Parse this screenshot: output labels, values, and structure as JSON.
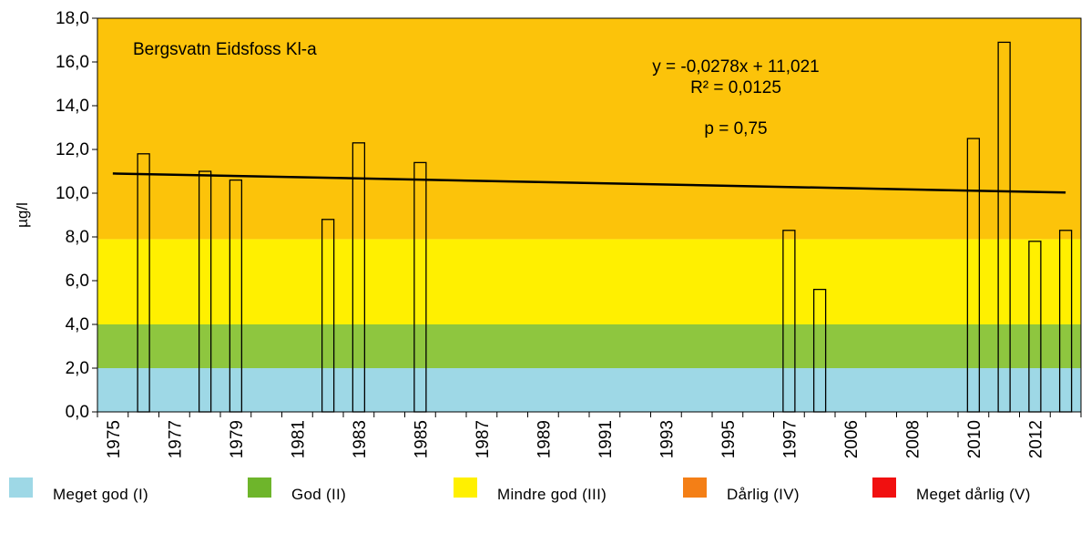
{
  "chart_data": {
    "type": "bar",
    "title": "Bergsvatn Eidsfoss  Kl-a",
    "ylabel": "µg/l",
    "xlabel": "",
    "ylim": [
      0,
      18
    ],
    "yticks": [
      "0,0",
      "2,0",
      "4,0",
      "6,0",
      "8,0",
      "10,0",
      "12,0",
      "14,0",
      "16,0",
      "18,0"
    ],
    "xtick_labels": [
      "1975",
      "1977",
      "1979",
      "1981",
      "1983",
      "1985",
      "1987",
      "1989",
      "1991",
      "1993",
      "1995",
      "1997",
      "2006",
      "2008",
      "2010",
      "2012"
    ],
    "slots": 32,
    "bars": [
      {
        "slot": 1,
        "value": 11.8
      },
      {
        "slot": 3,
        "value": 11.0
      },
      {
        "slot": 4,
        "value": 10.6
      },
      {
        "slot": 7,
        "value": 8.8
      },
      {
        "slot": 8,
        "value": 12.3
      },
      {
        "slot": 10,
        "value": 11.4
      },
      {
        "slot": 22,
        "value": 8.3
      },
      {
        "slot": 23,
        "value": 5.6
      },
      {
        "slot": 28,
        "value": 12.5
      },
      {
        "slot": 29,
        "value": 16.9
      },
      {
        "slot": 30,
        "value": 7.8
      },
      {
        "slot": 31,
        "value": 8.3
      }
    ],
    "trendline": {
      "start": 10.9,
      "end": 10.03
    },
    "annotations": {
      "equation": "y = -0,0278x + 11,021",
      "r2": "R² = 0,0125",
      "p": "p = 0,75"
    },
    "class_bands": [
      {
        "from": 0,
        "to": 2,
        "color": "#9ed8e6"
      },
      {
        "from": 2,
        "to": 4,
        "color": "#8ec63f"
      },
      {
        "from": 4,
        "to": 7.9,
        "color": "#fff000"
      },
      {
        "from": 7.9,
        "to": 18,
        "color": "#fcc30a"
      }
    ],
    "grid": false
  },
  "legend": [
    {
      "label": "Meget god (I)",
      "color": "#9ed8e6"
    },
    {
      "label": "God (II)",
      "color": "#6eb52b"
    },
    {
      "label": "Mindre god (III)",
      "color": "#fff000"
    },
    {
      "label": "Dårlig (IV)",
      "color": "#f47f16"
    },
    {
      "label": "Meget dårlig (V)",
      "color": "#f11010"
    }
  ]
}
